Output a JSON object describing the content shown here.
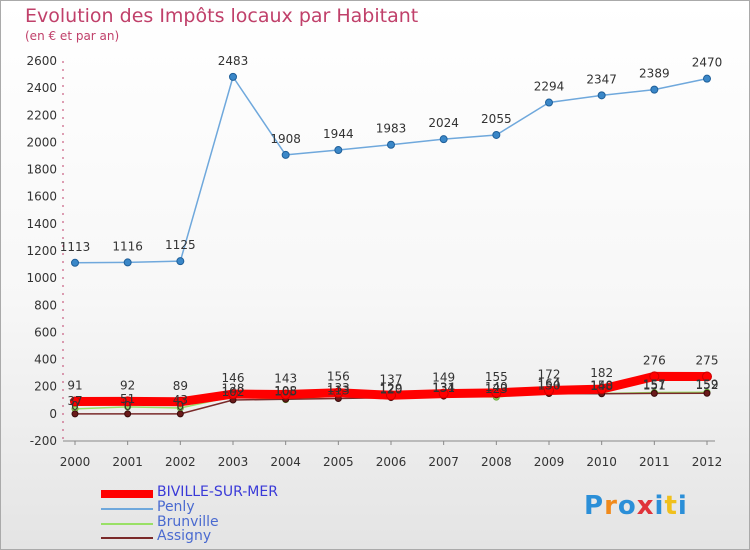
{
  "chart_data": {
    "type": "line",
    "title": "Evolution des Impôts locaux par Habitant",
    "subtitle": "(en € et par an)",
    "x": [
      "2000",
      "2001",
      "2002",
      "2003",
      "2004",
      "2005",
      "2006",
      "2007",
      "2008",
      "2009",
      "2010",
      "2011",
      "2012"
    ],
    "ylim": [
      -200,
      2600
    ],
    "yticks": [
      -200,
      0,
      200,
      400,
      600,
      800,
      1000,
      1200,
      1400,
      1600,
      1800,
      2000,
      2200,
      2400,
      2600
    ],
    "grid": false,
    "series": [
      {
        "name": "BIVILLE-SUR-MER",
        "color": "#ff0000",
        "values": [
          91,
          92,
          89,
          146,
          143,
          156,
          137,
          149,
          155,
          172,
          182,
          276,
          275
        ]
      },
      {
        "name": "Penly",
        "color": "#6fa8dc",
        "values": [
          1113,
          1116,
          1125,
          2483,
          1908,
          1944,
          1983,
          2024,
          2055,
          2294,
          2347,
          2389,
          2470
        ]
      },
      {
        "name": "Brunville",
        "color": "#99e066",
        "values": [
          37,
          51,
          43,
          128,
          105,
          133,
          129,
          134,
          123,
          164,
          150,
          157,
          159
        ]
      },
      {
        "name": "Assigny",
        "color": "#7a2a2a",
        "values": [
          0,
          0,
          0,
          102,
          108,
          113,
          120,
          131,
          140,
          150,
          148,
          151,
          152
        ]
      }
    ],
    "label_series": "Penly"
  },
  "logo": {
    "text": "Proxiti",
    "letters": [
      "P",
      "r",
      "o",
      "x",
      "i",
      "t",
      "i"
    ]
  }
}
